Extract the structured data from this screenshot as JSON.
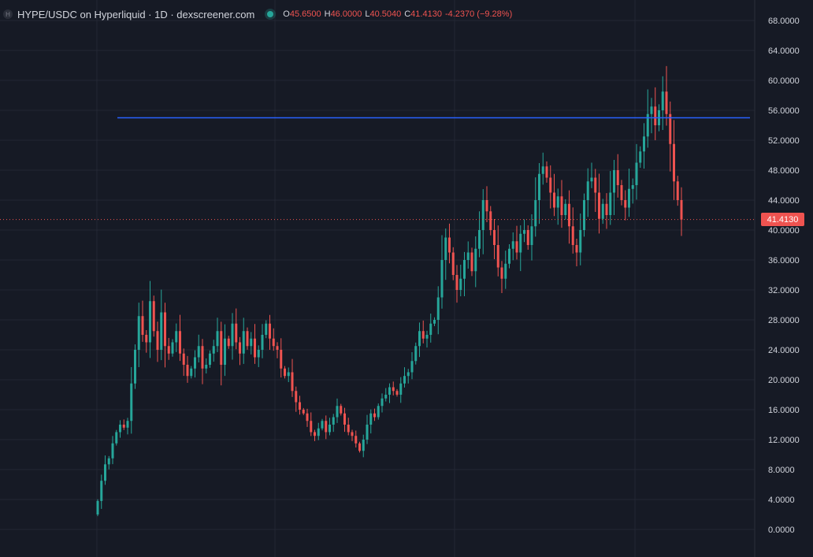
{
  "legend": {
    "symbol_icon": "H",
    "title": "HYPE/USDC on Hyperliquid · 1D · dexscreener.com",
    "open_label": "O",
    "open": "45.6500",
    "high_label": "H",
    "high": "46.0000",
    "low_label": "L",
    "low": "40.5040",
    "close_label": "C",
    "close": "41.4130",
    "change": "-4.2370 (−9.28%)"
  },
  "last_price_badge": "41.4130",
  "colors": {
    "background": "#161a25",
    "up": "#26a69a",
    "down": "#ef5350",
    "hline": "#2962ff",
    "grid": "#232733"
  },
  "chart_data": {
    "type": "candlestick",
    "y_ticks": [
      "68.0000",
      "64.0000",
      "60.0000",
      "56.0000",
      "52.0000",
      "48.0000",
      "44.0000",
      "40.0000",
      "36.0000",
      "32.0000",
      "28.0000",
      "24.0000",
      "20.0000",
      "16.0000",
      "12.0000",
      "8.0000",
      "4.0000",
      "0.0000"
    ],
    "ylim": [
      -4,
      70
    ],
    "grid": true,
    "horizontal_line": 55.0,
    "last_price": 41.413,
    "close_series": [
      3.8,
      6.5,
      8.7,
      9.5,
      11.5,
      13.0,
      14.0,
      13.6,
      14.5,
      19.5,
      24.0,
      28.5,
      26.0,
      25.0,
      30.5,
      26.5,
      24.0,
      29.0,
      24.5,
      23.5,
      25.0,
      26.5,
      23.5,
      22.0,
      20.5,
      21.5,
      23.0,
      24.5,
      21.5,
      22.0,
      23.5,
      24.5,
      26.5,
      22.0,
      25.5,
      24.5,
      27.5,
      25.0,
      23.5,
      26.5,
      24.5,
      25.5,
      23.0,
      24.0,
      26.0,
      27.5,
      25.5,
      24.5,
      24.0,
      21.5,
      20.5,
      21.0,
      18.5,
      17.0,
      16.0,
      15.5,
      14.5,
      13.0,
      12.5,
      13.5,
      14.5,
      13.0,
      14.0,
      15.0,
      16.5,
      15.5,
      14.0,
      13.0,
      12.5,
      11.5,
      10.5,
      12.0,
      14.0,
      15.5,
      15.0,
      16.5,
      17.5,
      18.0,
      19.0,
      18.5,
      18.0,
      19.5,
      20.5,
      21.0,
      22.5,
      24.5,
      26.5,
      25.5,
      26.0,
      27.5,
      28.0,
      31.0,
      36.0,
      39.0,
      37.0,
      34.0,
      32.0,
      33.5,
      36.0,
      37.0,
      34.5,
      37.5,
      40.0,
      44.0,
      42.5,
      40.0,
      38.0,
      35.0,
      33.5,
      35.5,
      37.5,
      38.5,
      37.0,
      39.5,
      40.0,
      38.0,
      40.5,
      44.0,
      47.5,
      48.5,
      47.0,
      45.0,
      43.0,
      44.5,
      42.0,
      43.5,
      40.5,
      38.0,
      37.0,
      40.0,
      44.0,
      46.5,
      47.0,
      45.0,
      41.5,
      43.5,
      42.0,
      45.0,
      48.0,
      46.0,
      44.0,
      43.0,
      45.5,
      46.0,
      49.0,
      50.5,
      52.5,
      55.5,
      56.5,
      54.0,
      56.0,
      58.5,
      55.5,
      51.5,
      46.5,
      44.0,
      41.413
    ]
  }
}
